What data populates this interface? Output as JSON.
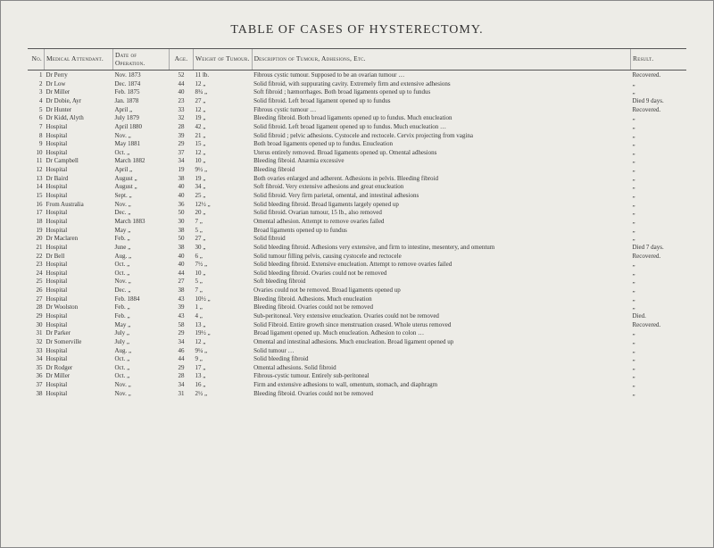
{
  "title": "TABLE OF CASES OF HYSTERECTOMY.",
  "columns": {
    "no": "No.",
    "attendant": "Medical Attendant.",
    "date": "Date of Operation.",
    "age": "Age.",
    "weight": "Weight of Tumour.",
    "desc": "Description of Tumour, Adhesions, Etc.",
    "result": "Result."
  },
  "rows": [
    {
      "no": "1",
      "att": "Dr Perry",
      "date": "Nov. 1873",
      "age": "52",
      "wt": "11 lb.",
      "desc": "Fibrous cystic tumour. Supposed to be an ovarian tumour …",
      "res": "Recovered."
    },
    {
      "no": "2",
      "att": "Dr Low",
      "date": "Dec. 1874",
      "age": "44",
      "wt": "12 „",
      "desc": "Solid fibroid, with suppurating cavity. Extremely firm and extensive adhesions",
      "res": "„"
    },
    {
      "no": "3",
      "att": "Dr Miller",
      "date": "Feb. 1875",
      "age": "40",
      "wt": "8¾ „",
      "desc": "Soft fibroid ; hæmorrhages. Both broad ligaments opened up to fundus",
      "res": "„"
    },
    {
      "no": "4",
      "att": "Dr Dobie, Ayr",
      "date": "Jan. 1878",
      "age": "23",
      "wt": "27 „",
      "desc": "Solid fibroid. Left broad ligament opened up to fundus",
      "res": "Died 9 days."
    },
    {
      "no": "5",
      "att": "Dr Hunter",
      "date": "April „",
      "age": "33",
      "wt": "12 „",
      "desc": "Fibrous cystic tumour …",
      "res": "Recovered."
    },
    {
      "no": "6",
      "att": "Dr Kidd, Alyth",
      "date": "July 1879",
      "age": "32",
      "wt": "19 „",
      "desc": "Bleeding fibroid. Both broad ligaments opened up to fundus. Much enucleation",
      "res": "„"
    },
    {
      "no": "7",
      "att": "Hospital",
      "date": "April 1880",
      "age": "28",
      "wt": "42 „",
      "desc": "Solid fibroid. Left broad ligament opened up to fundus. Much enucleation …",
      "res": "„"
    },
    {
      "no": "8",
      "att": "Hospital",
      "date": "Nov. „",
      "age": "39",
      "wt": "21 „",
      "desc": "Solid fibroid ; pelvic adhesions. Cystocele and rectocele. Cervix projecting from vagina",
      "res": "„"
    },
    {
      "no": "9",
      "att": "Hospital",
      "date": "May 1881",
      "age": "29",
      "wt": "15 „",
      "desc": "Both broad ligaments opened up to fundus. Enucleation",
      "res": "„"
    },
    {
      "no": "10",
      "att": "Hospital",
      "date": "Oct. „",
      "age": "37",
      "wt": "12 „",
      "desc": "Uterus entirely removed. Broad ligaments opened up. Omental adhesions",
      "res": "„"
    },
    {
      "no": "11",
      "att": "Dr Campbell",
      "date": "March 1882",
      "age": "34",
      "wt": "10 „",
      "desc": "Bleeding fibroid. Anæmia excessive",
      "res": "„"
    },
    {
      "no": "12",
      "att": "Hospital",
      "date": "April „",
      "age": "19",
      "wt": "9½ „",
      "desc": "Bleeding fibroid",
      "res": "„"
    },
    {
      "no": "13",
      "att": "Dr Baird",
      "date": "August „",
      "age": "38",
      "wt": "19 „",
      "desc": "Both ovaries enlarged and adherent. Adhesions in pelvis. Bleeding fibroid",
      "res": "„"
    },
    {
      "no": "14",
      "att": "Hospital",
      "date": "August „",
      "age": "40",
      "wt": "34 „",
      "desc": "Soft fibroid. Very extensive adhesions and great enucleation",
      "res": "„"
    },
    {
      "no": "15",
      "att": "Hospital",
      "date": "Sept. „",
      "age": "40",
      "wt": "25 „",
      "desc": "Solid fibroid. Very firm parietal, omental, and intestinal adhesions",
      "res": "„"
    },
    {
      "no": "16",
      "att": "From Australia",
      "date": "Nov. „",
      "age": "36",
      "wt": "12½ „",
      "desc": "Solid bleeding fibroid. Broad ligaments largely opened up",
      "res": "„"
    },
    {
      "no": "17",
      "att": "Hospital",
      "date": "Dec. „",
      "age": "50",
      "wt": "20 „",
      "desc": "Solid fibroid. Ovarian tumour, 15 lb., also removed",
      "res": "„"
    },
    {
      "no": "18",
      "att": "Hospital",
      "date": "March 1883",
      "age": "30",
      "wt": "7 „",
      "desc": "Omental adhesion. Attempt to remove ovaries failed",
      "res": "„"
    },
    {
      "no": "19",
      "att": "Hospital",
      "date": "May „",
      "age": "38",
      "wt": "5 „",
      "desc": "Broad ligaments opened up to fundus",
      "res": "„"
    },
    {
      "no": "20",
      "att": "Dr Maclaren",
      "date": "Feb. „",
      "age": "50",
      "wt": "27 „",
      "desc": "Solid fibroid",
      "res": "„"
    },
    {
      "no": "21",
      "att": "Hospital",
      "date": "June „",
      "age": "38",
      "wt": "30 „",
      "desc": "Solid bleeding fibroid. Adhesions very extensive, and firm to intestine, mesentery, and omentum",
      "res": "Died 7 days."
    },
    {
      "no": "22",
      "att": "Dr Bell",
      "date": "Aug. „",
      "age": "40",
      "wt": "6 „",
      "desc": "Solid tumour filling pelvis, causing cystocele and rectocele",
      "res": "Recovered."
    },
    {
      "no": "23",
      "att": "Hospital",
      "date": "Oct. „",
      "age": "40",
      "wt": "7½ „",
      "desc": "Solid bleeding fibroid. Extensive enucleation. Attempt to remove ovaries failed",
      "res": "„"
    },
    {
      "no": "24",
      "att": "Hospital",
      "date": "Oct. „",
      "age": "44",
      "wt": "10 „",
      "desc": "Solid bleeding fibroid. Ovaries could not be removed",
      "res": "„"
    },
    {
      "no": "25",
      "att": "Hospital",
      "date": "Nov. „",
      "age": "27",
      "wt": "5 „",
      "desc": "Soft bleeding fibroid",
      "res": "„"
    },
    {
      "no": "26",
      "att": "Hospital",
      "date": "Dec. „",
      "age": "38",
      "wt": "7 „",
      "desc": "Ovaries could not be removed. Broad ligaments opened up",
      "res": "„"
    },
    {
      "no": "27",
      "att": "Hospital",
      "date": "Feb. 1884",
      "age": "43",
      "wt": "10½ „",
      "desc": "Bleeding fibroid. Adhesions. Much enucleation",
      "res": "„"
    },
    {
      "no": "28",
      "att": "Dr Woolston",
      "date": "Feb. „",
      "age": "39",
      "wt": "1 „",
      "desc": "Bleeding fibroid. Ovaries could not be removed",
      "res": "„"
    },
    {
      "no": "29",
      "att": "Hospital",
      "date": "Feb. „",
      "age": "43",
      "wt": "4 „",
      "desc": "Sub-peritoneal. Very extensive enucleation. Ovaries could not be removed",
      "res": "Died."
    },
    {
      "no": "30",
      "att": "Hospital",
      "date": "May „",
      "age": "58",
      "wt": "13 „",
      "desc": "Solid Fibroid. Entire growth since menstruation ceased. Whole uterus removed",
      "res": "Recovered."
    },
    {
      "no": "31",
      "att": "Dr Parker",
      "date": "July „",
      "age": "29",
      "wt": "19½ „",
      "desc": "Broad ligament opened up. Much enucleation. Adhesion to colon …",
      "res": "„"
    },
    {
      "no": "32",
      "att": "Dr Somerville",
      "date": "July „",
      "age": "34",
      "wt": "12 „",
      "desc": "Omental and intestinal adhesions. Much enucleation. Broad ligament opened up",
      "res": "„"
    },
    {
      "no": "33",
      "att": "Hospital",
      "date": "Aug. „",
      "age": "46",
      "wt": "9¼ „",
      "desc": "Solid tumour …",
      "res": "„"
    },
    {
      "no": "34",
      "att": "Hospital",
      "date": "Oct. „",
      "age": "44",
      "wt": "9 „",
      "desc": "Solid bleeding fibroid",
      "res": "„"
    },
    {
      "no": "35",
      "att": "Dr Rodger",
      "date": "Oct. „",
      "age": "29",
      "wt": "17 „",
      "desc": "Omental adhesions. Solid fibroid",
      "res": "„"
    },
    {
      "no": "36",
      "att": "Dr Miller",
      "date": "Oct. „",
      "age": "28",
      "wt": "13 „",
      "desc": "Fibrous-cystic tumour. Entirely sub-peritoneal",
      "res": "„"
    },
    {
      "no": "37",
      "att": "Hospital",
      "date": "Nov. „",
      "age": "34",
      "wt": "16 „",
      "desc": "Firm and extensive adhesions to wall, omentum, stomach, and diaphragm",
      "res": "„"
    },
    {
      "no": "38",
      "att": "Hospital",
      "date": "Nov. „",
      "age": "31",
      "wt": "2½ „",
      "desc": "Bleeding fibroid. Ovaries could not be removed",
      "res": "„"
    }
  ]
}
